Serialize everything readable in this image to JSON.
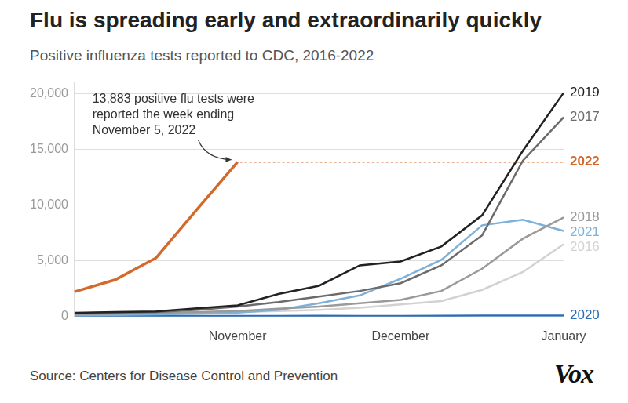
{
  "chart_data": {
    "type": "line",
    "title": "Flu is spreading early and extraordinarily quickly",
    "subtitle": "Positive influenza tests reported to CDC, 2016-2022",
    "source": "Source: Centers for Disease Control and Prevention",
    "logo": "Vox",
    "categories": [
      null,
      null,
      null,
      null,
      "November",
      null,
      null,
      null,
      "December",
      null,
      null,
      null,
      "January"
    ],
    "series": [
      {
        "name": "2022",
        "color": "#d4692c",
        "values": [
          2230,
          3310,
          5270,
          9600,
          13883,
          null,
          null,
          null,
          null,
          null,
          null,
          null,
          null
        ]
      },
      {
        "name": "2019",
        "color": "#222222",
        "values": [
          340,
          400,
          470,
          750,
          1010,
          2030,
          2770,
          4600,
          4950,
          6300,
          9100,
          14900,
          20100
        ]
      },
      {
        "name": "2017",
        "color": "#6b6b6b",
        "values": [
          300,
          350,
          400,
          600,
          900,
          1300,
          1800,
          2300,
          3000,
          4600,
          7300,
          14000,
          17900
        ]
      },
      {
        "name": "2018",
        "color": "#9a9a9a",
        "values": [
          200,
          250,
          300,
          400,
          500,
          700,
          900,
          1200,
          1500,
          2300,
          4300,
          7000,
          8900
        ]
      },
      {
        "name": "2021",
        "color": "#7fb1d8",
        "values": [
          100,
          150,
          200,
          250,
          350,
          600,
          1200,
          1900,
          3400,
          5100,
          8200,
          8700,
          7700
        ]
      },
      {
        "name": "2016",
        "color": "#d2d2d2",
        "values": [
          150,
          200,
          250,
          300,
          400,
          500,
          600,
          800,
          1100,
          1400,
          2400,
          4000,
          6500
        ]
      },
      {
        "name": "2020",
        "color": "#2a6db5",
        "values": [
          80,
          70,
          60,
          60,
          60,
          60,
          70,
          60,
          60,
          70,
          90,
          100,
          100
        ]
      }
    ],
    "ylim": [
      0,
      21000
    ],
    "yticks": [
      0,
      {
        "value": 5000,
        "label": "5,000"
      },
      {
        "value": 10000,
        "label": "10,000"
      },
      {
        "value": 15000,
        "label": "15,000"
      },
      {
        "value": 20000,
        "label": "20,000"
      }
    ],
    "grid": true,
    "annotation": {
      "lines": [
        "13,883 positive flu tests were",
        "reported the week ending",
        "November 5, 2022"
      ],
      "series": "2022"
    }
  }
}
